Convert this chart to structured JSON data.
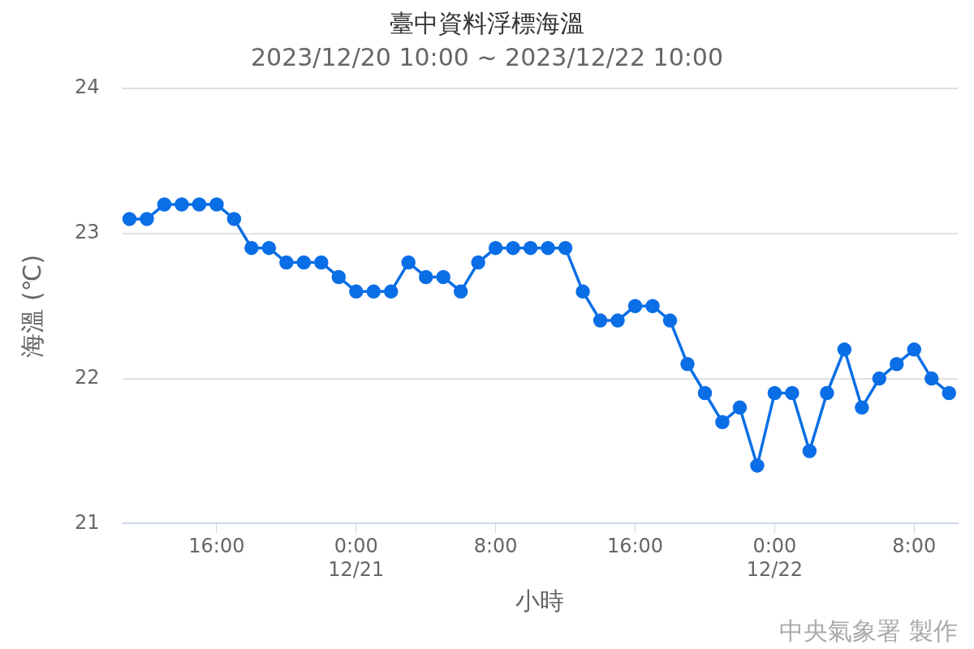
{
  "chart_data": {
    "type": "line",
    "title": "臺中資料浮標海溫",
    "subtitle": "2023/12/20 10:00 ~ 2023/12/22 10:00",
    "xlabel": "小時",
    "ylabel": "海溫 (℃)",
    "annotations": [
      "中央氣象署 製作"
    ],
    "x": [
      "2023-12-20T11:00",
      "2023-12-20T12:00",
      "2023-12-20T13:00",
      "2023-12-20T14:00",
      "2023-12-20T15:00",
      "2023-12-20T16:00",
      "2023-12-20T17:00",
      "2023-12-20T18:00",
      "2023-12-20T19:00",
      "2023-12-20T20:00",
      "2023-12-20T21:00",
      "2023-12-20T22:00",
      "2023-12-20T23:00",
      "2023-12-21T00:00",
      "2023-12-21T01:00",
      "2023-12-21T02:00",
      "2023-12-21T03:00",
      "2023-12-21T04:00",
      "2023-12-21T05:00",
      "2023-12-21T06:00",
      "2023-12-21T07:00",
      "2023-12-21T08:00",
      "2023-12-21T09:00",
      "2023-12-21T10:00",
      "2023-12-21T11:00",
      "2023-12-21T12:00",
      "2023-12-21T13:00",
      "2023-12-21T14:00",
      "2023-12-21T15:00",
      "2023-12-21T16:00",
      "2023-12-21T17:00",
      "2023-12-21T18:00",
      "2023-12-21T19:00",
      "2023-12-21T20:00",
      "2023-12-21T21:00",
      "2023-12-21T22:00",
      "2023-12-21T23:00",
      "2023-12-22T00:00",
      "2023-12-22T01:00",
      "2023-12-22T02:00",
      "2023-12-22T03:00",
      "2023-12-22T04:00",
      "2023-12-22T05:00",
      "2023-12-22T06:00",
      "2023-12-22T07:00",
      "2023-12-22T08:00",
      "2023-12-22T09:00",
      "2023-12-22T10:00"
    ],
    "series": [
      {
        "color": "#0a6ee6",
        "values": [
          23.1,
          23.1,
          23.2,
          23.2,
          23.2,
          23.2,
          23.1,
          22.9,
          22.9,
          22.8,
          22.8,
          22.8,
          22.7,
          22.6,
          22.6,
          22.6,
          22.8,
          22.7,
          22.7,
          22.6,
          22.8,
          22.9,
          22.9,
          22.9,
          22.9,
          22.9,
          22.6,
          22.4,
          22.4,
          22.5,
          22.5,
          22.4,
          22.1,
          21.9,
          21.7,
          21.8,
          21.4,
          21.9,
          21.9,
          21.5,
          21.9,
          22.2,
          21.8,
          22.0,
          22.1,
          22.2,
          22.0,
          21.9
        ]
      }
    ],
    "xlim": [
      "2023-12-20T10:35",
      "2023-12-22T10:30"
    ],
    "xticks": [
      {
        "value": "2023-12-20T16:00",
        "label": "16:00"
      },
      {
        "value": "2023-12-21T00:00",
        "label": "0:00\n12/21"
      },
      {
        "value": "2023-12-21T08:00",
        "label": "8:00"
      },
      {
        "value": "2023-12-21T16:00",
        "label": "16:00"
      },
      {
        "value": "2023-12-22T00:00",
        "label": "0:00\n12/22"
      },
      {
        "value": "2023-12-22T08:00",
        "label": "8:00"
      }
    ],
    "ylim": [
      21,
      24
    ],
    "yticks": [
      21,
      22,
      23,
      24
    ],
    "grid": "y",
    "legend": false,
    "marker": "circle",
    "line_style": "solid"
  }
}
